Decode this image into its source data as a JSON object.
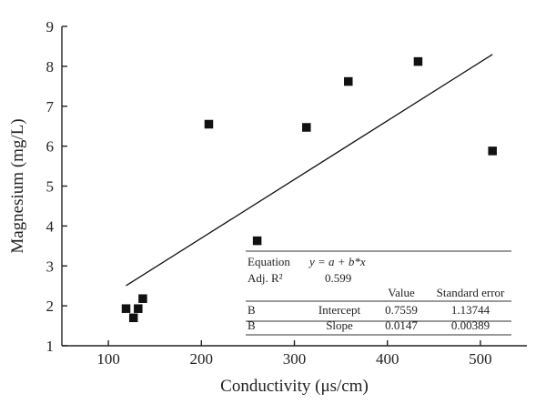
{
  "chart_data": {
    "type": "scatter",
    "title": "",
    "xlabel": "Conductivity (μs/cm)",
    "ylabel": "Magnesium (mg/L)",
    "xlim": [
      50,
      550
    ],
    "ylim": [
      1,
      9
    ],
    "x_ticks": [
      100,
      200,
      300,
      400,
      500
    ],
    "y_ticks": [
      1,
      2,
      3,
      4,
      5,
      6,
      7,
      8,
      9
    ],
    "grid": false,
    "series": [
      {
        "x": [
          119,
          127,
          132,
          137,
          208,
          260,
          313,
          358,
          433,
          513
        ],
        "y": [
          1.93,
          1.7,
          1.93,
          2.18,
          6.55,
          3.63,
          6.47,
          7.62,
          8.12,
          5.88
        ]
      }
    ],
    "fit_line": {
      "x_start": 119,
      "x_end": 513,
      "intercept": 0.7559,
      "slope": 0.0147
    },
    "fit_table": {
      "equation_label": "Equation",
      "equation": "y = a + b*x",
      "adjr2_label": "Adj. R²",
      "adjr2": "0.599",
      "value_header": "Value",
      "std_error_header": "Standard error",
      "rows": [
        {
          "group": "B",
          "param": "Intercept",
          "value": "0.7559",
          "std_error": "1.13744"
        },
        {
          "group": "B",
          "param": "Slope",
          "value": "0.0147",
          "std_error": "0.00389"
        }
      ]
    }
  }
}
